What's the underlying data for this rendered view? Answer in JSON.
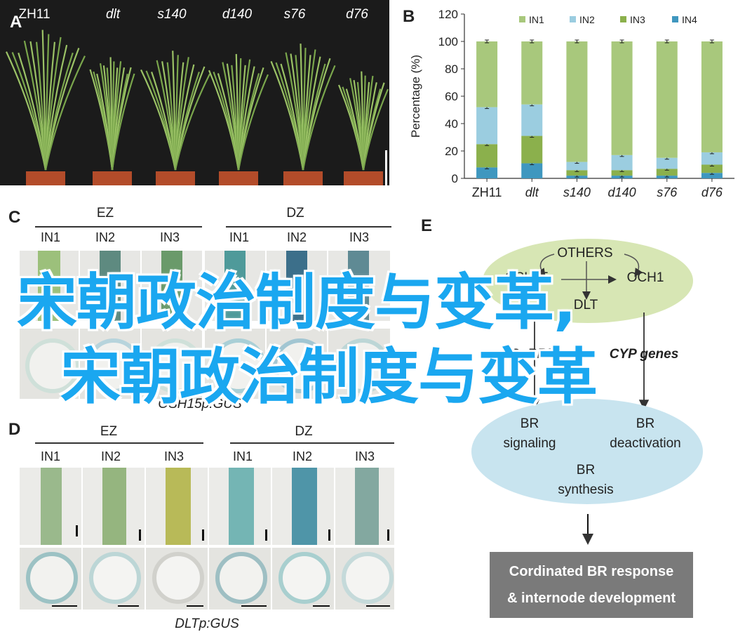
{
  "panels": {
    "a": "A",
    "b": "B",
    "c": "C",
    "d": "D",
    "e": "E"
  },
  "panel_a": {
    "genotypes": [
      "ZH11",
      "dlt",
      "s140",
      "d140",
      "s76",
      "d76"
    ]
  },
  "chart_data": {
    "type": "bar",
    "stacked": true,
    "categories": [
      "ZH11",
      "dlt",
      "s140",
      "d140",
      "s76",
      "d76"
    ],
    "ylabel": "Percentage (%)",
    "xlabel": "",
    "ylim": [
      0,
      120
    ],
    "yticks": [
      0,
      20,
      40,
      60,
      80,
      100,
      120
    ],
    "legend_position": "top",
    "series": [
      {
        "name": "IN4",
        "color": "#3f97bf",
        "values": [
          8,
          11,
          2,
          2,
          2,
          4
        ]
      },
      {
        "name": "IN3",
        "color": "#8bb04c",
        "values": [
          17,
          20,
          4,
          4,
          5,
          6
        ]
      },
      {
        "name": "IN2",
        "color": "#9bcde0",
        "values": [
          27,
          23,
          6,
          11,
          8,
          9
        ]
      },
      {
        "name": "IN1",
        "color": "#a8c87c",
        "values": [
          48,
          46,
          88,
          83,
          85,
          81
        ]
      }
    ],
    "legend_order": [
      "IN1",
      "IN2",
      "IN3",
      "IN4"
    ],
    "grid": false
  },
  "panel_c": {
    "group1": "EZ",
    "group2": "DZ",
    "internodes": [
      "IN1",
      "IN2",
      "IN3"
    ],
    "caption": "OSH15p:GUS"
  },
  "panel_d": {
    "group1": "EZ",
    "group2": "DZ",
    "internodes": [
      "IN1",
      "IN2",
      "IN3"
    ],
    "caption": "DLTp:GUS"
  },
  "panel_e": {
    "others": "OTHERS",
    "osh15": "OSH15",
    "och1": "OCH1",
    "dlt": "DLT",
    "osbri1": "OsBRI1",
    "cyp": "CYP genes",
    "br_signaling_1": "BR",
    "br_signaling_2": "signaling",
    "br_deactivation_1": "BR",
    "br_deactivation_2": "deactivation",
    "br_synthesis_1": "BR",
    "br_synthesis_2": "synthesis",
    "response_1": "Cordinated BR response",
    "response_2": "& internode development"
  },
  "watermark": {
    "line1": "宋朝政治制度与变革,",
    "line2": "宋朝政治制度与变革"
  },
  "colors": {
    "in1": "#a8c87c",
    "in2": "#9bcde0",
    "in3": "#8bb04c",
    "in4": "#3f97bf",
    "ellipse_green": "#d7e6b4",
    "ellipse_blue": "#c8e4ef",
    "box_gray": "#7a7a7a",
    "watermark": "#1aa7f0"
  }
}
